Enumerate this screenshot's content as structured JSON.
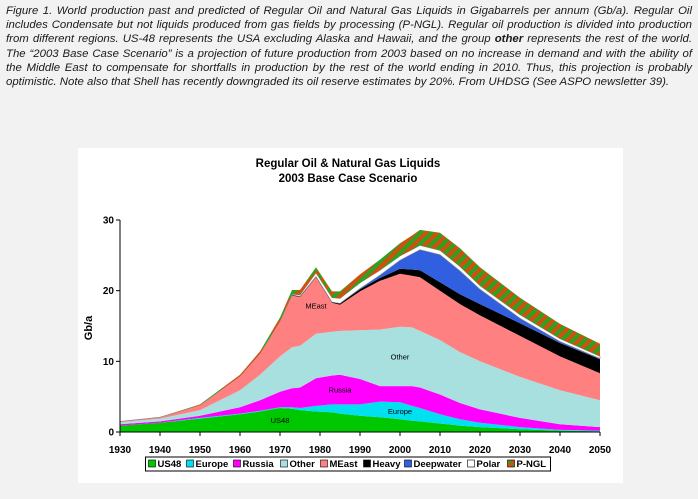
{
  "caption": {
    "s1": "Figure 1. World production past and predicted of Regular Oil and Natural Gas Liquids in Gigabarrels per annum (Gb/a). Regular Oil includes Condensate but not liquids produced from gas fields by processing (P-NGL). Regular oil production is divided into production from different regions. US-48 represents the USA excluding Alaska and Hawaii, and the group ",
    "bold": "other",
    "s2": " represents the rest of the world. The “2003 Base Case Scenario” is a projection of future production from 2003 based on no increase in demand and with the ability of the Middle East to compensate for shortfalls in production by the rest of the world ending in 2010. Thus, this projection is probably optimistic. Note also that Shell has recently downgraded its oil reserve estimates by 20%. From UHDSG (See ASPO newsletter 39)."
  },
  "colors": {
    "US48": "#00c800",
    "Europe": "#00e0f0",
    "Russia": "#ff00ff",
    "Other": "#a8e0e0",
    "MEast": "#ff8080",
    "Heavy": "#000000",
    "Deepwater": "#3060e0",
    "Polar": "#ffffff",
    "P-NGL": "#d05010"
  },
  "chart_data": {
    "type": "area",
    "title": "Regular Oil & Natural Gas Liquids",
    "subtitle": "2003 Base Case Scenario",
    "xlabel": "",
    "ylabel": "Gb/a",
    "xlim": [
      1930,
      2050
    ],
    "ylim": [
      0,
      30
    ],
    "xticks": [
      1930,
      1940,
      1950,
      1960,
      1970,
      1980,
      1990,
      2000,
      2010,
      2020,
      2030,
      2040,
      2050
    ],
    "yticks": [
      0,
      10,
      20,
      30
    ],
    "x": [
      1930,
      1940,
      1950,
      1960,
      1965,
      1970,
      1973,
      1975,
      1979,
      1983,
      1985,
      1990,
      1995,
      2000,
      2003,
      2005,
      2010,
      2015,
      2020,
      2030,
      2040,
      2050
    ],
    "series": [
      {
        "name": "US48",
        "values": [
          0.9,
          1.3,
          1.9,
          2.5,
          2.9,
          3.4,
          3.3,
          3.1,
          2.9,
          2.8,
          2.6,
          2.3,
          2.1,
          1.8,
          1.6,
          1.5,
          1.2,
          0.9,
          0.7,
          0.4,
          0.2,
          0.1
        ]
      },
      {
        "name": "Europe",
        "values": [
          0.0,
          0.0,
          0.1,
          0.1,
          0.1,
          0.1,
          0.2,
          0.3,
          0.8,
          1.1,
          1.3,
          1.6,
          2.2,
          2.4,
          2.1,
          1.9,
          1.3,
          0.9,
          0.6,
          0.3,
          0.1,
          0.1
        ]
      },
      {
        "name": "Russia",
        "values": [
          0.2,
          0.2,
          0.3,
          0.9,
          1.5,
          2.2,
          2.7,
          2.9,
          3.9,
          4.1,
          4.2,
          3.6,
          2.2,
          2.3,
          2.8,
          2.9,
          2.8,
          2.3,
          1.9,
          1.3,
          0.8,
          0.5
        ]
      },
      {
        "name": "Other",
        "values": [
          0.3,
          0.4,
          0.8,
          2.4,
          3.6,
          5.0,
          5.8,
          5.9,
          6.3,
          6.2,
          6.2,
          6.9,
          8.0,
          8.4,
          8.3,
          8.0,
          7.7,
          7.2,
          6.8,
          5.8,
          4.8,
          3.8
        ]
      },
      {
        "name": "MEast",
        "values": [
          0.1,
          0.2,
          0.7,
          2.0,
          3.0,
          5.0,
          7.3,
          6.9,
          8.0,
          4.1,
          3.7,
          5.5,
          6.9,
          7.5,
          7.3,
          7.6,
          7.0,
          6.8,
          6.5,
          5.8,
          4.8,
          3.8
        ]
      },
      {
        "name": "Heavy",
        "values": [
          0.0,
          0.0,
          0.0,
          0.0,
          0.0,
          0.0,
          0.1,
          0.1,
          0.1,
          0.1,
          0.2,
          0.3,
          0.4,
          0.7,
          0.9,
          1.0,
          1.2,
          1.4,
          1.6,
          1.8,
          1.9,
          2.0
        ]
      },
      {
        "name": "Deepwater",
        "values": [
          0.0,
          0.0,
          0.0,
          0.0,
          0.0,
          0.0,
          0.0,
          0.0,
          0.0,
          0.0,
          0.0,
          0.1,
          0.4,
          1.2,
          2.2,
          2.9,
          3.9,
          3.3,
          2.1,
          0.7,
          0.2,
          0.1
        ]
      },
      {
        "name": "Polar",
        "values": [
          0.0,
          0.0,
          0.0,
          0.0,
          0.0,
          0.0,
          0.1,
          0.2,
          0.5,
          0.6,
          0.7,
          0.8,
          0.7,
          0.6,
          0.6,
          0.6,
          0.6,
          0.6,
          0.5,
          0.5,
          0.4,
          0.3
        ]
      },
      {
        "name": "P-NGL",
        "values": [
          0.0,
          0.0,
          0.1,
          0.2,
          0.3,
          0.5,
          0.6,
          0.7,
          0.8,
          0.9,
          1.0,
          1.2,
          1.5,
          1.8,
          2.0,
          2.2,
          2.5,
          2.6,
          2.6,
          2.4,
          2.1,
          1.8
        ]
      }
    ],
    "area_labels": [
      {
        "text": "MEast",
        "series": "MEast"
      },
      {
        "text": "Other",
        "series": "Other"
      },
      {
        "text": "Russia",
        "series": "Russia"
      },
      {
        "text": "Europe",
        "series": "Europe"
      },
      {
        "text": "US48",
        "series": "US48"
      }
    ],
    "legend": {
      "placement": "bottom",
      "entries": [
        "US48",
        "Europe",
        "Russia",
        "Other",
        "MEast",
        "Heavy",
        "Deepwater",
        "Polar",
        "P-NGL"
      ]
    },
    "grid": false
  }
}
